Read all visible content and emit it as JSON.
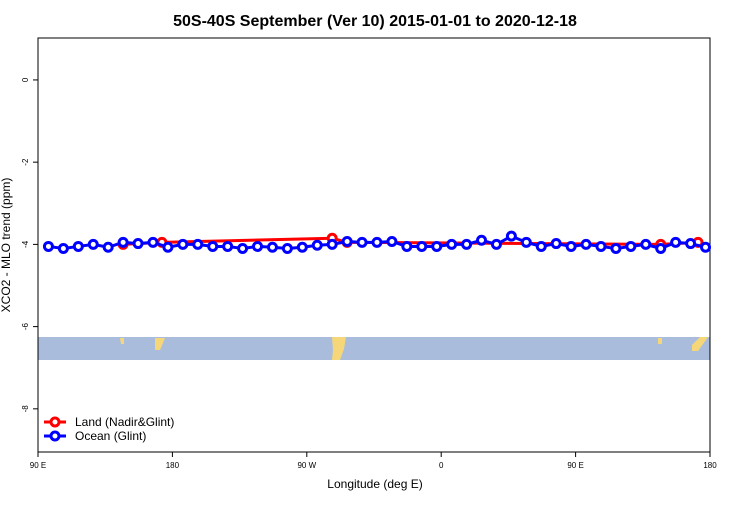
{
  "chart_data": {
    "type": "line",
    "title": "50S-40S September (Ver 10)   2015-01-01 to 2020-12-18",
    "x_label": "Longitude (deg E)",
    "y_label": "XCO2 - MLO trend (ppm)",
    "xlim": [
      90,
      540
    ],
    "xticks": [
      {
        "value": 90,
        "label": "90 E"
      },
      {
        "value": 180,
        "label": "180"
      },
      {
        "value": 270,
        "label": "90 W"
      },
      {
        "value": 360,
        "label": "0"
      },
      {
        "value": 450,
        "label": "90 E"
      },
      {
        "value": 540,
        "label": "180"
      }
    ],
    "ylim": [
      -9.05,
      1.02
    ],
    "yticks": [
      0,
      -2,
      -4,
      -6,
      -8
    ],
    "legend": "bottom-left",
    "series": [
      {
        "name": "Land (Nadir&Glint)",
        "color": "#ff0000",
        "x": [
          147,
          173,
          287,
          297,
          507,
          532
        ],
        "values": [
          -4.0,
          -3.95,
          -3.85,
          -3.95,
          -4.0,
          -3.95
        ]
      },
      {
        "name": "Ocean (Glint)",
        "color": "#0000ff",
        "x": [
          97,
          107,
          117,
          127,
          137,
          147,
          157,
          167,
          177,
          187,
          197,
          207,
          217,
          227,
          237,
          247,
          257,
          267,
          277,
          287,
          297,
          307,
          317,
          327,
          337,
          347,
          357,
          367,
          377,
          387,
          397,
          407,
          417,
          427,
          437,
          447,
          457,
          467,
          477,
          487,
          497,
          507,
          517,
          527,
          537
        ],
        "values": [
          -4.05,
          -4.1,
          -4.05,
          -4.0,
          -4.07,
          -3.95,
          -3.98,
          -3.95,
          -4.07,
          -4.0,
          -4.0,
          -4.05,
          -4.05,
          -4.1,
          -4.05,
          -4.07,
          -4.1,
          -4.07,
          -4.02,
          -4.0,
          -3.93,
          -3.95,
          -3.95,
          -3.93,
          -4.05,
          -4.05,
          -4.05,
          -4.0,
          -4.0,
          -3.9,
          -4.0,
          -3.8,
          -3.95,
          -4.05,
          -3.98,
          -4.05,
          -4.0,
          -4.05,
          -4.1,
          -4.05,
          -4.0,
          -4.1,
          -3.95,
          -3.98,
          -4.07
        ]
      }
    ]
  }
}
